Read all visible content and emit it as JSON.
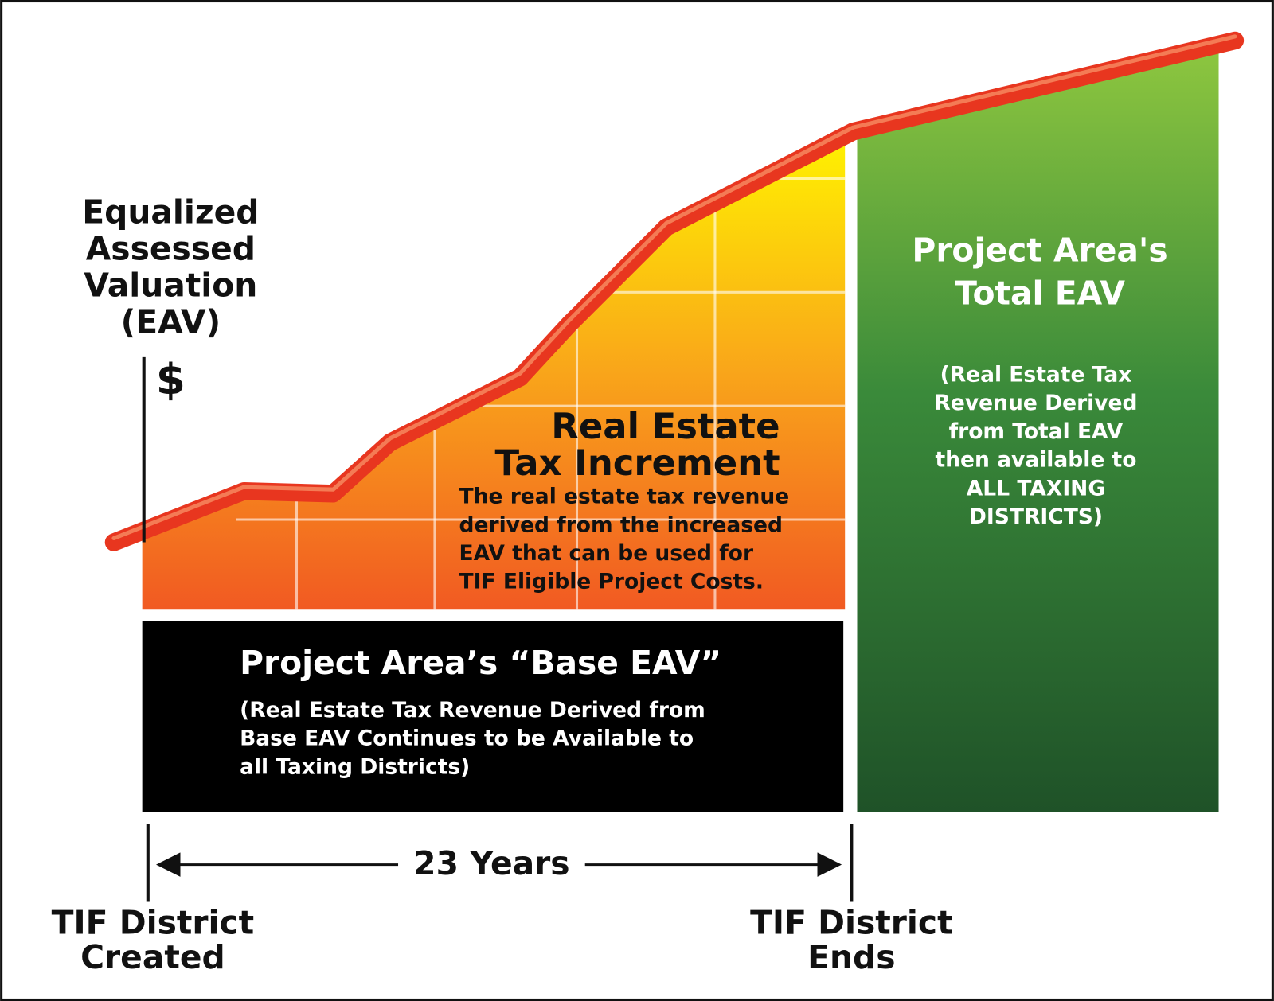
{
  "y_axis": {
    "label": [
      "Equalized",
      "Assessed",
      "Valuation",
      "(EAV)"
    ],
    "symbol": "$"
  },
  "increment": {
    "title": [
      "Real Estate",
      "Tax Increment"
    ],
    "description": [
      "The real estate tax revenue",
      "derived from the increased",
      "EAV that can be used for",
      "TIF Eligible Project Costs."
    ]
  },
  "base": {
    "title": "Project Area’s “Base EAV”",
    "description": [
      "(Real Estate Tax Revenue Derived from",
      "Base EAV Continues to be Available to",
      "all Taxing Districts)"
    ]
  },
  "total": {
    "title": [
      "Project Area's",
      "Total EAV"
    ],
    "description": [
      "(Real Estate Tax",
      "Revenue Derived",
      "from Total EAV",
      "then available to",
      "ALL TAXING",
      "DISTRICTS)"
    ]
  },
  "timeline": {
    "duration": "23 Years",
    "start": [
      "TIF District",
      "Created"
    ],
    "end": [
      "TIF District",
      "Ends"
    ]
  }
}
